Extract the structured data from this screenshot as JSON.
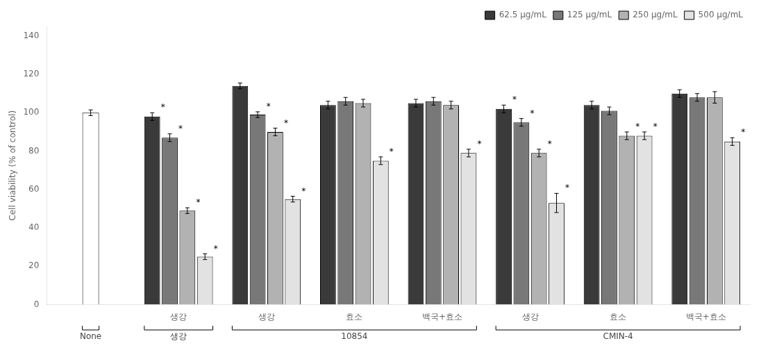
{
  "chart_data": {
    "type": "bar",
    "categories": [
      null,
      "생강",
      "생강",
      "효소",
      "백국+효소",
      "생강",
      "효소",
      "백국+효소"
    ],
    "sections": [
      {
        "label": "None",
        "span": 1
      },
      {
        "label": "생강",
        "span": 1
      },
      {
        "label": "10854",
        "span": 3
      },
      {
        "label": "CMIN-4",
        "span": 3
      }
    ],
    "series": [
      {
        "color": "#ffffff",
        "values": [
          100,
          null,
          null,
          null,
          null,
          null,
          null,
          null
        ],
        "errors": [
          1.5,
          null,
          null,
          null,
          null,
          null,
          null,
          null
        ],
        "significant": [
          false,
          null,
          null,
          null,
          null,
          null,
          null,
          null
        ]
      },
      {
        "name": "62.5 μg/mL",
        "color": "#3a3a3a",
        "values": [
          null,
          98,
          114,
          104,
          105,
          102,
          104,
          110
        ],
        "errors": [
          null,
          2,
          1.5,
          2,
          2,
          2,
          2,
          2
        ],
        "significant": [
          null,
          true,
          false,
          false,
          false,
          true,
          false,
          false
        ]
      },
      {
        "name": "125 μg/mL",
        "color": "#787878",
        "values": [
          null,
          87,
          99,
          106,
          106,
          95,
          101,
          108
        ],
        "errors": [
          null,
          2,
          1.5,
          2,
          2,
          2,
          2,
          2
        ],
        "significant": [
          null,
          true,
          true,
          false,
          false,
          true,
          false,
          false
        ]
      },
      {
        "name": "250 μg/mL",
        "color": "#b2b2b2",
        "values": [
          null,
          49,
          90,
          105,
          104,
          79,
          88,
          108
        ],
        "errors": [
          null,
          1.5,
          2,
          2,
          2,
          2,
          2,
          3
        ],
        "significant": [
          null,
          true,
          true,
          false,
          false,
          true,
          true,
          false
        ]
      },
      {
        "name": "500 μg/mL",
        "color": "#e2e2e2",
        "values": [
          null,
          25,
          55,
          75,
          79,
          53,
          88,
          85
        ],
        "errors": [
          null,
          1.5,
          1.5,
          2,
          2,
          5,
          2,
          2
        ],
        "significant": [
          null,
          true,
          true,
          true,
          true,
          true,
          true,
          true
        ]
      }
    ],
    "significance_label": "*",
    "ylabel": "Cell viability (% of control)",
    "ylim": [
      0,
      145
    ],
    "yticks": [
      0,
      20,
      40,
      60,
      80,
      100,
      120,
      140
    ],
    "grid": false,
    "legend": "upper right"
  }
}
